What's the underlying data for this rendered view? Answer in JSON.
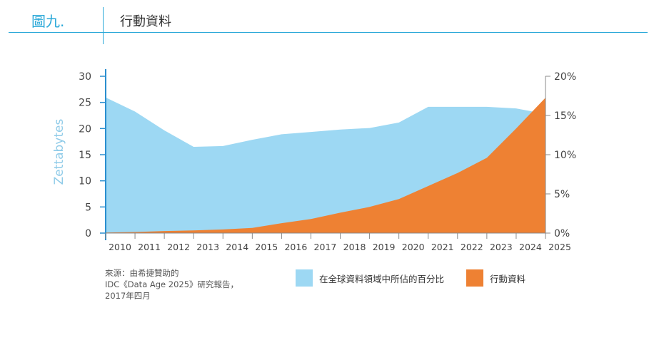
{
  "header": {
    "figure_label": "圖九.",
    "title": "行動資料"
  },
  "source_lines": [
    "來源：由希捷贊助的",
    "IDC《Data Age 2025》研究報告，",
    "2017年四月"
  ],
  "chart_data": {
    "type": "area",
    "x": [
      2010,
      2011,
      2012,
      2013,
      2014,
      2015,
      2016,
      2017,
      2018,
      2019,
      2020,
      2021,
      2022,
      2023,
      2024,
      2025
    ],
    "xticklabels": [
      "2010",
      "2011",
      "2012",
      "2013",
      "2014",
      "2015",
      "2016",
      "2017",
      "2018",
      "2019",
      "2020",
      "2021",
      "2022",
      "2023",
      "2024",
      "2025"
    ],
    "ylabel": "Zettabytes",
    "ylim": [
      0,
      30
    ],
    "yticks": [
      0,
      5,
      10,
      15,
      20,
      25,
      30
    ],
    "y2lim": [
      0,
      20
    ],
    "y2ticks": [
      0,
      5,
      10,
      15,
      20
    ],
    "y2ticklabels": [
      "0%",
      "5%",
      "10%",
      "15%",
      "20%"
    ],
    "series": [
      {
        "name": "在全球資料領域中所佔的百分比",
        "axis": "right",
        "color": "#9dd8f3",
        "values": [
          17.3,
          15.5,
          13.1,
          11.0,
          11.1,
          11.9,
          12.6,
          12.9,
          13.2,
          13.4,
          14.1,
          16.1,
          16.1,
          16.1,
          15.9,
          15.2
        ]
      },
      {
        "name": "行動資料",
        "axis": "left",
        "color": "#ee8133",
        "values": [
          0.1,
          0.2,
          0.4,
          0.5,
          0.7,
          1.0,
          1.9,
          2.7,
          3.9,
          5.0,
          6.5,
          9.0,
          11.5,
          14.4,
          20.0,
          25.9
        ]
      }
    ],
    "axis_color": "#2b8fcf",
    "grid": false,
    "legend_position": "bottom"
  }
}
